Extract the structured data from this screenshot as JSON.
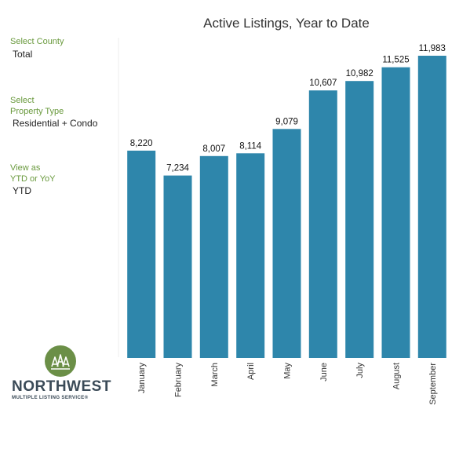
{
  "filters": {
    "county": {
      "label": "Select County",
      "value": "Total"
    },
    "property_type": {
      "label": "Select\nProperty Type",
      "value": "Residential + Condo"
    },
    "view": {
      "label": "View as\nYTD or YoY",
      "value": "YTD"
    }
  },
  "logo": {
    "icon": "trees-logo-icon",
    "wordmark": "NORTHWEST",
    "subtitle": "MULTIPLE LISTING SERVICE®",
    "color": "#6b8f47"
  },
  "colors": {
    "bar": "#2e86ab"
  },
  "chart_data": {
    "type": "bar",
    "title": "Active Listings, Year to Date",
    "categories": [
      "January",
      "February",
      "March",
      "April",
      "May",
      "June",
      "July",
      "August",
      "September"
    ],
    "values": [
      8220,
      7234,
      8007,
      8114,
      9079,
      10607,
      10982,
      11525,
      11983
    ],
    "value_labels": [
      "8,220",
      "7,234",
      "8,007",
      "8,114",
      "9,079",
      "10,607",
      "10,982",
      "11,525",
      "11,983"
    ],
    "ylim": [
      0,
      12700
    ],
    "grid": false,
    "xlabel": "",
    "ylabel": ""
  }
}
